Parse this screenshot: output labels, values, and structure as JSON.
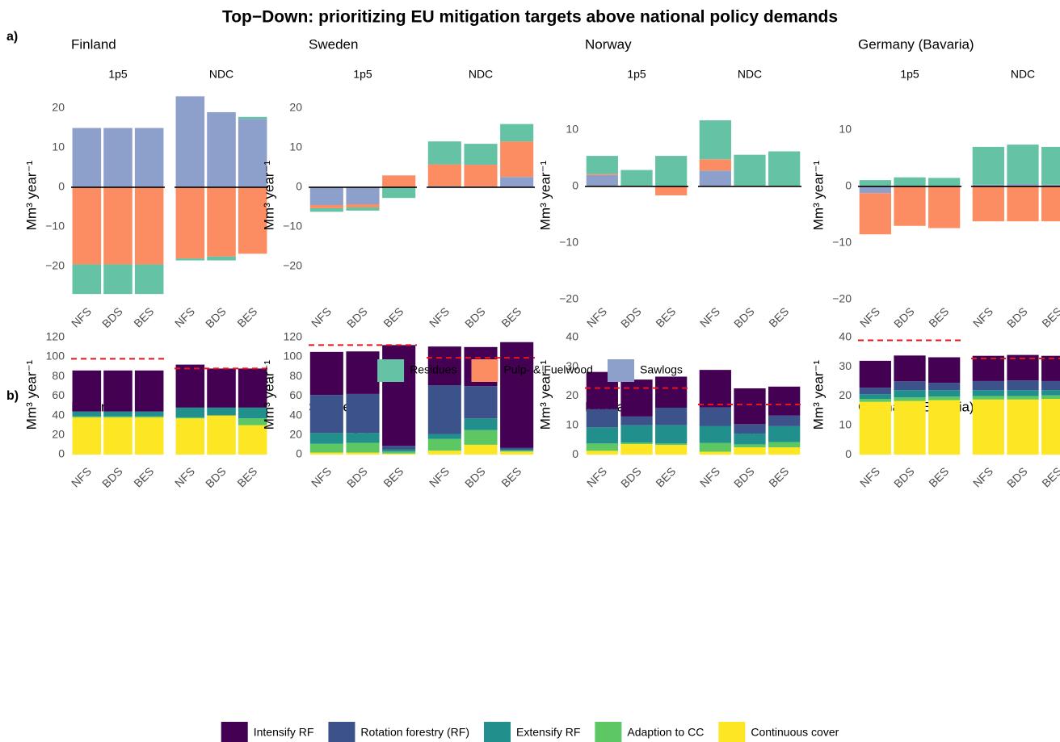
{
  "title": "Top−Down: prioritizing EU mitigation targets above national policy demands",
  "panel_labels": [
    "a)",
    "b)"
  ],
  "chart_data": [
    {
      "type": "bar",
      "stacked": true,
      "title": "Finland",
      "facets": [
        "1p5",
        "NDC"
      ],
      "categories": [
        "NFS",
        "BDS",
        "BES",
        "NFS",
        "BDS",
        "BES"
      ],
      "ylabel": "Mm³ year⁻¹",
      "ylim": [
        -28.6,
        24.5
      ],
      "yticks": [
        {
          "value": -20,
          "label": "−20"
        },
        {
          "value": -10,
          "label": "−10"
        },
        0,
        10,
        20
      ],
      "zero_line": true,
      "grid": false,
      "series": [
        {
          "name": "Residues",
          "color": "#66c2a5",
          "values": [
            -7.5,
            -7.5,
            -7.5,
            -0.5,
            -1,
            0.5
          ]
        },
        {
          "name": "Pulp- & Fuelwood",
          "color": "#fc8d62",
          "values": [
            -19.5,
            -19.5,
            -19.5,
            -18,
            -17.5,
            -16.8
          ]
        },
        {
          "name": "Sawlogs",
          "color": "#8da0cb",
          "values": [
            15,
            15,
            15,
            23,
            19,
            17.3
          ]
        }
      ]
    },
    {
      "type": "bar",
      "stacked": true,
      "title": "Sweden",
      "facets": [
        "1p5",
        "NDC"
      ],
      "categories": [
        "NFS",
        "BDS",
        "BES",
        "NFS",
        "BDS",
        "BES"
      ],
      "ylabel": "Mm³ year⁻¹",
      "ylim": [
        -28.6,
        24.5
      ],
      "yticks": [
        {
          "value": -20,
          "label": "−20"
        },
        {
          "value": -10,
          "label": "−10"
        },
        0,
        10,
        20
      ],
      "zero_line": true,
      "grid": false,
      "series": [
        {
          "name": "Residues",
          "color": "#66c2a5",
          "values": [
            -0.9,
            -0.8,
            -2.7,
            5.8,
            5.3,
            4.4
          ]
        },
        {
          "name": "Pulp- & Fuelwood",
          "color": "#fc8d62",
          "values": [
            -0.8,
            -0.8,
            3,
            5.5,
            5.5,
            9
          ]
        },
        {
          "name": "Sawlogs",
          "color": "#8da0cb",
          "values": [
            -4.5,
            -4.3,
            0,
            0.3,
            0.2,
            2.6
          ]
        }
      ]
    },
    {
      "type": "bar",
      "stacked": true,
      "title": "Norway",
      "facets": [
        "1p5",
        "NDC"
      ],
      "categories": [
        "NFS",
        "BDS",
        "BES",
        "NFS",
        "BDS",
        "BES"
      ],
      "ylabel": "Mm³ year⁻¹",
      "ylim": [
        -20.2,
        17
      ],
      "yticks": [
        {
          "value": -20,
          "label": "−20"
        },
        {
          "value": -10,
          "label": "−10"
        },
        0,
        10
      ],
      "zero_line": true,
      "grid": false,
      "series": [
        {
          "name": "Residues",
          "color": "#66c2a5",
          "values": [
            3.2,
            2.9,
            5.4,
            6.9,
            5.6,
            6.2
          ]
        },
        {
          "name": "Pulp- & Fuelwood",
          "color": "#fc8d62",
          "values": [
            0.2,
            0,
            -1.6,
            2,
            0,
            0
          ]
        },
        {
          "name": "Sawlogs",
          "color": "#8da0cb",
          "values": [
            2,
            0,
            0,
            2.8,
            0,
            0
          ]
        }
      ]
    },
    {
      "type": "bar",
      "stacked": true,
      "title": "Germany (Bavaria)",
      "facets": [
        "1p5",
        "NDC"
      ],
      "categories": [
        "NFS",
        "BDS",
        "BES",
        "NFS",
        "BDS",
        "BES"
      ],
      "ylabel": "Mm³ year⁻¹",
      "ylim": [
        -20.2,
        17
      ],
      "yticks": [
        {
          "value": -20,
          "label": "−20"
        },
        {
          "value": -10,
          "label": "−10"
        },
        0,
        10
      ],
      "zero_line": true,
      "grid": false,
      "series": [
        {
          "name": "Residues",
          "color": "#66c2a5",
          "values": [
            1.1,
            1.6,
            1.5,
            6.7,
            7,
            6.7
          ]
        },
        {
          "name": "Pulp- & Fuelwood",
          "color": "#fc8d62",
          "values": [
            -7.3,
            -7,
            -7.4,
            -6.2,
            -6.2,
            -6.2
          ]
        },
        {
          "name": "Sawlogs",
          "color": "#8da0cb",
          "values": [
            -1.2,
            0,
            0,
            0.3,
            0.4,
            0.3
          ]
        }
      ]
    },
    {
      "type": "bar",
      "stacked": true,
      "title": "Finland",
      "facets": [
        "1p5",
        "NDC"
      ],
      "categories": [
        "NFS",
        "BDS",
        "BES",
        "NFS",
        "BDS",
        "BES"
      ],
      "ylabel": "Mm³ year⁻¹",
      "ylim": [
        -5.8,
        128
      ],
      "yticks": [
        0,
        20,
        40,
        60,
        80,
        100,
        120
      ],
      "zero_line": false,
      "grid": false,
      "ref_lines": [
        98,
        88
      ],
      "ref_color": "#e8141c",
      "series": [
        {
          "name": "Intensify RF",
          "color": "#440154",
          "values": [
            42,
            42,
            42,
            44,
            40,
            40
          ]
        },
        {
          "name": "Rotation forestry (RF)",
          "color": "#3b528b",
          "values": [
            0,
            0,
            0,
            0,
            0,
            0
          ]
        },
        {
          "name": "Extensify RF",
          "color": "#21908c",
          "values": [
            5,
            5,
            5,
            10,
            8,
            11
          ]
        },
        {
          "name": "Adaption to CC",
          "color": "#5dc863",
          "values": [
            1,
            1,
            1,
            1,
            0,
            7
          ]
        },
        {
          "name": "Continuous cover",
          "color": "#fde725",
          "values": [
            38,
            38,
            38,
            37,
            40,
            30
          ]
        }
      ]
    },
    {
      "type": "bar",
      "stacked": true,
      "title": "Sweden",
      "facets": [
        "1p5",
        "NDC"
      ],
      "categories": [
        "NFS",
        "BDS",
        "BES",
        "NFS",
        "BDS",
        "BES"
      ],
      "ylabel": "Mm³ year⁻¹",
      "ylim": [
        -5.8,
        128
      ],
      "yticks": [
        0,
        20,
        40,
        60,
        80,
        100,
        120
      ],
      "zero_line": false,
      "grid": false,
      "ref_lines": [
        112,
        99
      ],
      "ref_color": "#e8141c",
      "series": [
        {
          "name": "Intensify RF",
          "color": "#440154",
          "values": [
            44,
            43.5,
            103,
            39.5,
            40,
            108
          ]
        },
        {
          "name": "Rotation forestry (RF)",
          "color": "#3b528b",
          "values": [
            39,
            40,
            4,
            50,
            33,
            2
          ]
        },
        {
          "name": "Extensify RF",
          "color": "#21908c",
          "values": [
            11,
            10,
            2,
            5,
            12,
            1
          ]
        },
        {
          "name": "Adaption to CC",
          "color": "#5dc863",
          "values": [
            9,
            10,
            2,
            12,
            15,
            1
          ]
        },
        {
          "name": "Continuous cover",
          "color": "#fde725",
          "values": [
            2,
            2,
            1,
            4,
            10,
            3
          ]
        }
      ]
    },
    {
      "type": "bar",
      "stacked": true,
      "title": "Norway",
      "facets": [
        "1p5",
        "NDC"
      ],
      "categories": [
        "NFS",
        "BDS",
        "BES",
        "NFS",
        "BDS",
        "BES"
      ],
      "ylabel": "Mm³ year⁻¹",
      "ylim": [
        -1.9,
        42.7
      ],
      "yticks": [
        0,
        10,
        20,
        30,
        40
      ],
      "zero_line": false,
      "grid": false,
      "ref_lines": [
        22.7,
        17.1
      ],
      "ref_color": "#e8141c",
      "series": [
        {
          "name": "Intensify RF",
          "color": "#440154",
          "values": [
            12.7,
            12.6,
            10.6,
            12.8,
            12.2,
            9.9
          ]
        },
        {
          "name": "Rotation forestry (RF)",
          "color": "#3b528b",
          "values": [
            6.2,
            3,
            5.9,
            6.3,
            3.2,
            3.6
          ]
        },
        {
          "name": "Extensify RF",
          "color": "#21908c",
          "values": [
            5.5,
            5.9,
            6.3,
            5.8,
            3.7,
            5.4
          ]
        },
        {
          "name": "Adaption to CC",
          "color": "#5dc863",
          "values": [
            2.5,
            0.5,
            0.5,
            3,
            1,
            1.8
          ]
        },
        {
          "name": "Continuous cover",
          "color": "#fde725",
          "values": [
            1.3,
            3.6,
            3.3,
            1,
            2.5,
            2.5
          ]
        }
      ]
    },
    {
      "type": "bar",
      "stacked": true,
      "title": "Germany (Bavaria)",
      "facets": [
        "1p5",
        "NDC"
      ],
      "categories": [
        "NFS",
        "BDS",
        "BES",
        "NFS",
        "BDS",
        "BES"
      ],
      "ylabel": "Mm³ year⁻¹",
      "ylim": [
        -1.9,
        42.7
      ],
      "yticks": [
        0,
        10,
        20,
        30,
        40
      ],
      "zero_line": false,
      "grid": false,
      "ref_lines": [
        39,
        32.8
      ],
      "ref_color": "#e8141c",
      "series": [
        {
          "name": "Intensify RF",
          "color": "#440154",
          "values": [
            9.2,
            8.8,
            8.7,
            8.6,
            8.7,
            8.6
          ]
        },
        {
          "name": "Rotation forestry (RF)",
          "color": "#3b528b",
          "values": [
            2.2,
            3,
            2.5,
            3.1,
            3.3,
            3.1
          ]
        },
        {
          "name": "Extensify RF",
          "color": "#21908c",
          "values": [
            1.6,
            2.5,
            2.2,
            2,
            2,
            1.8
          ]
        },
        {
          "name": "Adaption to CC",
          "color": "#5dc863",
          "values": [
            1,
            1.2,
            1.2,
            1.2,
            1.2,
            1.2
          ]
        },
        {
          "name": "Continuous cover",
          "color": "#fde725",
          "values": [
            18,
            18.3,
            18.6,
            18.8,
            18.8,
            19
          ]
        }
      ]
    }
  ]
}
